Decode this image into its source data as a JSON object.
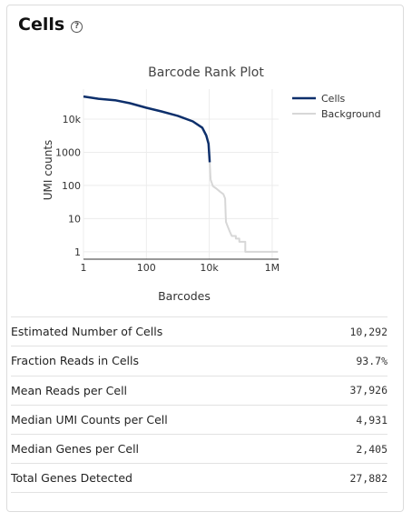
{
  "section": {
    "title": "Cells",
    "help_glyph": "?"
  },
  "chart_data": {
    "type": "line",
    "title": "Barcode Rank Plot",
    "xlabel": "Barcodes",
    "ylabel": "UMI counts",
    "x_scale": "log",
    "y_scale": "log",
    "xlim": [
      1,
      1600000
    ],
    "ylim": [
      0.6,
      80000
    ],
    "x_ticks": [
      {
        "value": 1,
        "label": "1"
      },
      {
        "value": 100,
        "label": "100"
      },
      {
        "value": 10000,
        "label": "10k"
      },
      {
        "value": 1000000,
        "label": "1M"
      }
    ],
    "y_ticks": [
      {
        "value": 1,
        "label": "1"
      },
      {
        "value": 10,
        "label": "10"
      },
      {
        "value": 100,
        "label": "100"
      },
      {
        "value": 1000,
        "label": "1000"
      },
      {
        "value": 10000,
        "label": "10k"
      }
    ],
    "grid": true,
    "legend_position": "top-right",
    "series": [
      {
        "name": "Cells",
        "color": "#0d2f6b",
        "points": [
          [
            1,
            48000
          ],
          [
            3,
            41000
          ],
          [
            10,
            37000
          ],
          [
            30,
            30000
          ],
          [
            100,
            22000
          ],
          [
            300,
            17000
          ],
          [
            1000,
            12500
          ],
          [
            3000,
            8500
          ],
          [
            6000,
            5500
          ],
          [
            8000,
            3200
          ],
          [
            9500,
            1800
          ],
          [
            10292,
            500
          ]
        ]
      },
      {
        "name": "Background",
        "color": "#d7d7d7",
        "points": [
          [
            10292,
            500
          ],
          [
            11000,
            150
          ],
          [
            13000,
            95
          ],
          [
            17000,
            80
          ],
          [
            22000,
            65
          ],
          [
            28000,
            55
          ],
          [
            32000,
            40
          ],
          [
            33000,
            15
          ],
          [
            34000,
            8
          ],
          [
            38000,
            6
          ],
          [
            45000,
            4
          ],
          [
            52000,
            3
          ],
          [
            70000,
            2.5
          ],
          [
            90000,
            2
          ],
          [
            120000,
            2
          ],
          [
            140000,
            1
          ],
          [
            1500000,
            1
          ]
        ]
      }
    ]
  },
  "metrics": [
    {
      "label": "Estimated Number of Cells",
      "value": "10,292"
    },
    {
      "label": "Fraction Reads in Cells",
      "value": "93.7%"
    },
    {
      "label": "Mean Reads per Cell",
      "value": "37,926"
    },
    {
      "label": "Median UMI Counts per Cell",
      "value": "4,931"
    },
    {
      "label": "Median Genes per Cell",
      "value": "2,405"
    },
    {
      "label": "Total Genes Detected",
      "value": "27,882"
    }
  ]
}
